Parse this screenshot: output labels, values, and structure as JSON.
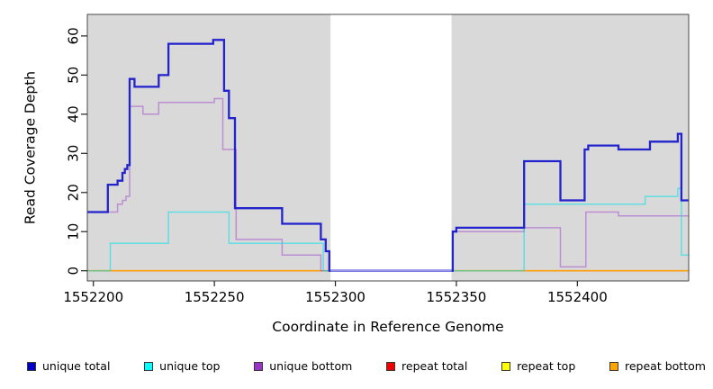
{
  "chart_data": {
    "type": "line",
    "subtype": "step-coverage",
    "xlabel": "Coordinate in Reference Genome",
    "ylabel": "Read Coverage Depth",
    "x_domain": [
      1552197.5,
      1552446
    ],
    "y_domain": [
      -2.6,
      65.5
    ],
    "x_ticks": [
      1552200,
      1552250,
      1552300,
      1552350,
      1552400
    ],
    "y_ticks": [
      0,
      10,
      20,
      30,
      40,
      50,
      60
    ],
    "panel_bg": "#d9d9d9",
    "gap_region": {
      "from": 1552298,
      "to": 1552348,
      "color": "#ffffff"
    },
    "draw_order": [
      3,
      4,
      5,
      2,
      1,
      0
    ],
    "series": [
      {
        "name": "unique total",
        "color": "#2323cd",
        "opacity": 1,
        "width": 2.3,
        "segments": [
          {
            "points": [
              [
                1552197.5,
                15
              ],
              [
                1552206,
                22
              ],
              [
                1552210,
                23
              ],
              [
                1552212,
                25
              ],
              [
                1552213,
                26
              ],
              [
                1552214,
                27
              ],
              [
                1552215,
                49
              ],
              [
                1552217,
                47
              ],
              [
                1552227,
                50
              ],
              [
                1552231,
                58
              ],
              [
                1552249.5,
                59
              ],
              [
                1552254,
                46
              ],
              [
                1552256,
                39
              ],
              [
                1552258.5,
                16
              ],
              [
                1552278,
                12
              ],
              [
                1552294,
                8
              ],
              [
                1552296,
                5
              ],
              [
                1552297.5,
                0
              ],
              [
                1552348.5,
                10
              ],
              [
                1552350,
                11
              ],
              [
                1552378,
                28
              ],
              [
                1552393,
                18
              ],
              [
                1552403,
                31
              ],
              [
                1552404.5,
                32
              ],
              [
                1552417,
                31
              ],
              [
                1552430,
                33
              ],
              [
                1552441.5,
                35
              ],
              [
                1552443,
                18
              ]
            ],
            "end": 1552446
          }
        ]
      },
      {
        "name": "unique top",
        "color": "#00e0ea",
        "opacity": 0.55,
        "width": 1.5,
        "segments": [
          {
            "points": [
              [
                1552197.5,
                0
              ],
              [
                1552207,
                7
              ],
              [
                1552231,
                15
              ],
              [
                1552256,
                7
              ],
              [
                1552295,
                0
              ],
              [
                1552378,
                17
              ],
              [
                1552428,
                19
              ],
              [
                1552441.5,
                21
              ],
              [
                1552443,
                4
              ]
            ],
            "end": 1552446
          }
        ]
      },
      {
        "name": "unique bottom",
        "color": "#9933cc",
        "opacity": 0.45,
        "width": 1.5,
        "segments": [
          {
            "points": [
              [
                1552197.5,
                15
              ],
              [
                1552210,
                17
              ],
              [
                1552212,
                18
              ],
              [
                1552213.5,
                19
              ],
              [
                1552215,
                42
              ],
              [
                1552220.5,
                40
              ],
              [
                1552227,
                43
              ],
              [
                1552250,
                44
              ],
              [
                1552253.5,
                31
              ],
              [
                1552259,
                8
              ],
              [
                1552278,
                4
              ],
              [
                1552294,
                0
              ],
              [
                1552348.5,
                10
              ],
              [
                1552378,
                11
              ],
              [
                1552393,
                1
              ],
              [
                1552403.5,
                15
              ],
              [
                1552417,
                14
              ]
            ],
            "end": 1552446
          }
        ]
      },
      {
        "name": "repeat total",
        "color": "#dd0000",
        "opacity": 1,
        "width": 1.3,
        "segments": [
          {
            "points": [
              [
                1552197.5,
                0
              ]
            ],
            "end": 1552298
          },
          {
            "points": [
              [
                1552348,
                0
              ]
            ],
            "end": 1552446
          }
        ]
      },
      {
        "name": "repeat top",
        "color": "#ffff00",
        "opacity": 1,
        "width": 1.3,
        "segments": [
          {
            "points": [
              [
                1552197.5,
                0
              ]
            ],
            "end": 1552298
          },
          {
            "points": [
              [
                1552348,
                0
              ]
            ],
            "end": 1552446
          }
        ]
      },
      {
        "name": "repeat bottom",
        "color": "#ff9d0a",
        "opacity": 1,
        "width": 1.7,
        "segments": [
          {
            "points": [
              [
                1552197.5,
                0
              ]
            ],
            "end": 1552298
          },
          {
            "points": [
              [
                1552348,
                0
              ]
            ],
            "end": 1552446
          }
        ]
      }
    ],
    "overlay_segments": [
      {
        "from": 1552298,
        "to": 1552348,
        "value": 0,
        "color": "#9b9bea",
        "width": 1.6
      }
    ]
  },
  "legend": {
    "items": [
      {
        "label": "unique total",
        "color": "#0000cc"
      },
      {
        "label": "unique top",
        "color": "#00ffff"
      },
      {
        "label": "unique bottom",
        "color": "#9933cc"
      },
      {
        "label": "repeat total",
        "color": "#ee0000"
      },
      {
        "label": "repeat top",
        "color": "#ffff00"
      },
      {
        "label": "repeat bottom",
        "color": "#ffa500"
      }
    ]
  }
}
